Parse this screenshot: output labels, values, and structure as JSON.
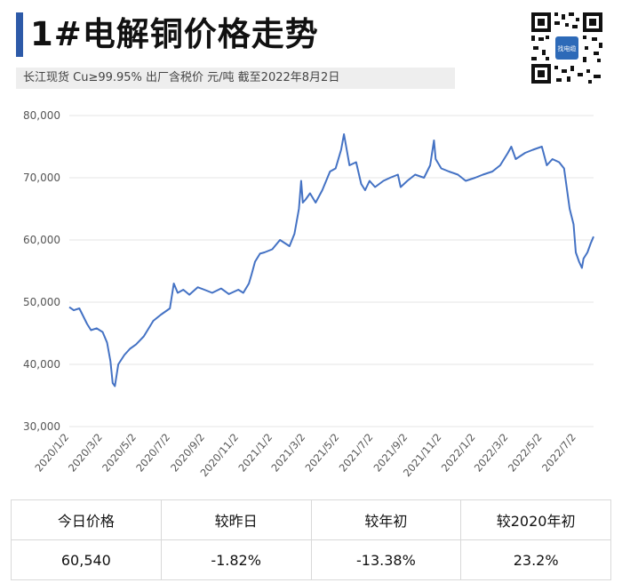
{
  "header": {
    "title": "1#电解铜价格走势",
    "subtitle": "长江现货 Cu≥99.95%  出厂含税价 元/吨  截至2022年8月2日"
  },
  "qr_code": {
    "logo_text": "找电缆"
  },
  "colors": {
    "accent": "#2d5aa8",
    "line": "#4472c4",
    "grid": "#e6e6e6",
    "subtitle_bg": "#eeeeee"
  },
  "chart_data": {
    "type": "line",
    "title": "1#电解铜价格走势",
    "xlabel": "",
    "ylabel": "",
    "ylim": [
      30000,
      80000
    ],
    "yticks": [
      "30,000",
      "40,000",
      "50,000",
      "60,000",
      "70,000",
      "80,000"
    ],
    "ytick_values": [
      30000,
      40000,
      50000,
      60000,
      70000,
      80000
    ],
    "xticks": [
      "2020/1/2",
      "2020/3/2",
      "2020/5/2",
      "2020/7/2",
      "2020/9/2",
      "2020/11/2",
      "2021/1/2",
      "2021/3/2",
      "2021/5/2",
      "2021/7/2",
      "2021/9/2",
      "2021/11/2",
      "2022/1/2",
      "2022/3/2",
      "2022/5/2",
      "2022/7/2"
    ],
    "grid": true,
    "series": [
      {
        "x": [
          "2020-01-02",
          "2020-01-10",
          "2020-01-20",
          "2020-02-03",
          "2020-02-10",
          "2020-02-20",
          "2020-03-02",
          "2020-03-10",
          "2020-03-16",
          "2020-03-20",
          "2020-03-24",
          "2020-03-30",
          "2020-04-10",
          "2020-04-20",
          "2020-05-01",
          "2020-05-15",
          "2020-06-01",
          "2020-06-15",
          "2020-07-01",
          "2020-07-08",
          "2020-07-15",
          "2020-07-25",
          "2020-08-05",
          "2020-08-20",
          "2020-09-01",
          "2020-09-15",
          "2020-10-01",
          "2020-10-15",
          "2020-11-01",
          "2020-11-10",
          "2020-11-20",
          "2020-11-25",
          "2020-12-01",
          "2020-12-10",
          "2020-12-18",
          "2021-01-01",
          "2021-01-15",
          "2021-02-01",
          "2021-02-10",
          "2021-02-18",
          "2021-02-22",
          "2021-02-25",
          "2021-03-02",
          "2021-03-10",
          "2021-03-20",
          "2021-04-01",
          "2021-04-15",
          "2021-04-25",
          "2021-05-05",
          "2021-05-10",
          "2021-05-14",
          "2021-05-20",
          "2021-06-01",
          "2021-06-10",
          "2021-06-17",
          "2021-06-25",
          "2021-07-05",
          "2021-07-20",
          "2021-08-01",
          "2021-08-15",
          "2021-08-20",
          "2021-09-01",
          "2021-09-15",
          "2021-10-01",
          "2021-10-12",
          "2021-10-19",
          "2021-10-22",
          "2021-11-01",
          "2021-11-15",
          "2021-12-01",
          "2021-12-15",
          "2022-01-01",
          "2022-01-15",
          "2022-02-01",
          "2022-02-15",
          "2022-03-01",
          "2022-03-07",
          "2022-03-15",
          "2022-04-01",
          "2022-04-15",
          "2022-05-01",
          "2022-05-10",
          "2022-05-20",
          "2022-06-01",
          "2022-06-10",
          "2022-06-20",
          "2022-06-27",
          "2022-07-01",
          "2022-07-07",
          "2022-07-12",
          "2022-07-15",
          "2022-07-22",
          "2022-07-28",
          "2022-08-02"
        ],
        "values": [
          49200,
          48700,
          49000,
          46500,
          45500,
          45800,
          45200,
          43500,
          40500,
          37000,
          36500,
          40000,
          41500,
          42500,
          43200,
          44500,
          47000,
          48000,
          49000,
          53000,
          51500,
          52000,
          51200,
          52400,
          52000,
          51500,
          52200,
          51300,
          52000,
          51500,
          53000,
          54500,
          56500,
          57800,
          58000,
          58500,
          60000,
          59000,
          61000,
          65000,
          69500,
          66000,
          66500,
          67500,
          66000,
          68000,
          71000,
          71500,
          74500,
          77000,
          75000,
          72000,
          72500,
          69000,
          68000,
          69500,
          68500,
          69500,
          70000,
          70500,
          68500,
          69500,
          70500,
          70000,
          72000,
          76000,
          73000,
          71500,
          71000,
          70500,
          69500,
          70000,
          70500,
          71000,
          72000,
          74000,
          75000,
          73000,
          74000,
          74500,
          75000,
          72000,
          73000,
          72500,
          71500,
          65000,
          62500,
          58000,
          56500,
          55500,
          57000,
          58000,
          59500,
          60540
        ]
      }
    ]
  },
  "summary": {
    "headers": [
      "今日价格",
      "较昨日",
      "较年初",
      "较2020年初"
    ],
    "values": [
      "60,540",
      "-1.82%",
      "-13.38%",
      "23.2%"
    ]
  }
}
